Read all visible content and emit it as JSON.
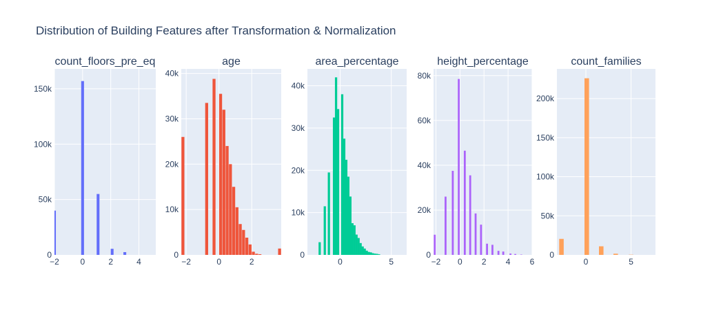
{
  "title": "Distribution of Building Features after Transformation & Normalization",
  "colors": {
    "plot_bg": "#e5ecf6",
    "grid": "#ffffff",
    "text": "#2a3f5f"
  },
  "chart_data": [
    {
      "type": "bar",
      "title": "count_floors_pre_eq",
      "color": "#636efa",
      "xlim": [
        -2,
        5.2
      ],
      "ylim": [
        0,
        168000
      ],
      "xticks": [
        -2,
        0,
        2,
        4
      ],
      "xtick_labels": [
        "−2",
        "0",
        "2",
        "4"
      ],
      "yticks": [
        0,
        50000,
        100000,
        150000
      ],
      "ytick_labels": [
        "0",
        "50k",
        "100k",
        "150k"
      ],
      "bin_width": 0.2,
      "bars": [
        {
          "x": -2,
          "y": 40000
        },
        {
          "x": 0,
          "y": 157000
        },
        {
          "x": 1.1,
          "y": 55000
        },
        {
          "x": 2.1,
          "y": 5500
        },
        {
          "x": 3.0,
          "y": 2500
        }
      ]
    },
    {
      "type": "bar",
      "title": "age",
      "color": "#ef553b",
      "xlim": [
        -2.3,
        3.8
      ],
      "ylim": [
        0,
        41000
      ],
      "xticks": [
        -2,
        0,
        2
      ],
      "xtick_labels": [
        "−2",
        "0",
        "2"
      ],
      "yticks": [
        0,
        10000,
        20000,
        30000,
        40000
      ],
      "ytick_labels": [
        "0",
        "10k",
        "20k",
        "30k",
        "40k"
      ],
      "bin_width": 0.18,
      "bars": [
        {
          "x": -2.2,
          "y": 26000
        },
        {
          "x": -0.75,
          "y": 33500
        },
        {
          "x": -0.3,
          "y": 38800
        },
        {
          "x": 0.1,
          "y": 35500
        },
        {
          "x": 0.3,
          "y": 32000
        },
        {
          "x": 0.5,
          "y": 24000
        },
        {
          "x": 0.7,
          "y": 20000
        },
        {
          "x": 0.9,
          "y": 15000
        },
        {
          "x": 1.1,
          "y": 10500
        },
        {
          "x": 1.3,
          "y": 6800
        },
        {
          "x": 1.5,
          "y": 5500
        },
        {
          "x": 1.7,
          "y": 3800
        },
        {
          "x": 1.9,
          "y": 2300
        },
        {
          "x": 2.1,
          "y": 700
        },
        {
          "x": 2.3,
          "y": 250
        },
        {
          "x": 2.5,
          "y": 150
        },
        {
          "x": 3.7,
          "y": 1400
        }
      ]
    },
    {
      "type": "bar",
      "title": "area_percentage",
      "color": "#00cc96",
      "xlim": [
        -3.2,
        6.5
      ],
      "ylim": [
        0,
        44000
      ],
      "xticks": [
        0,
        5
      ],
      "xtick_labels": [
        "0",
        "5"
      ],
      "yticks": [
        0,
        10000,
        20000,
        30000,
        40000
      ],
      "ytick_labels": [
        "0",
        "10k",
        "20k",
        "30k",
        "40k"
      ],
      "bin_width": 0.22,
      "bars": [
        {
          "x": -2.0,
          "y": 3000
        },
        {
          "x": -1.5,
          "y": 11500
        },
        {
          "x": -1.1,
          "y": 19500
        },
        {
          "x": -0.6,
          "y": 32500
        },
        {
          "x": -0.4,
          "y": 42000
        },
        {
          "x": -0.2,
          "y": 34500
        },
        {
          "x": 0.2,
          "y": 38000
        },
        {
          "x": 0.4,
          "y": 27500
        },
        {
          "x": 0.6,
          "y": 22500
        },
        {
          "x": 0.8,
          "y": 18500
        },
        {
          "x": 1.0,
          "y": 13800
        },
        {
          "x": 1.2,
          "y": 7500
        },
        {
          "x": 1.4,
          "y": 7000
        },
        {
          "x": 1.6,
          "y": 4800
        },
        {
          "x": 1.8,
          "y": 4000
        },
        {
          "x": 2.0,
          "y": 2800
        },
        {
          "x": 2.2,
          "y": 2000
        },
        {
          "x": 2.4,
          "y": 1500
        },
        {
          "x": 2.6,
          "y": 1000
        },
        {
          "x": 2.8,
          "y": 700
        },
        {
          "x": 3.0,
          "y": 600
        },
        {
          "x": 3.2,
          "y": 400
        },
        {
          "x": 3.4,
          "y": 300
        },
        {
          "x": 3.6,
          "y": 250
        },
        {
          "x": 3.8,
          "y": 150
        }
      ]
    },
    {
      "type": "bar",
      "title": "height_percentage",
      "color": "#ab63fa",
      "xlim": [
        -2.2,
        6
      ],
      "ylim": [
        0,
        83000
      ],
      "xticks": [
        -2,
        0,
        2,
        4,
        6
      ],
      "xtick_labels": [
        "−2",
        "0",
        "2",
        "4",
        "6"
      ],
      "yticks": [
        0,
        20000,
        40000,
        60000,
        80000
      ],
      "ytick_labels": [
        "0",
        "20k",
        "40k",
        "60k",
        "80k"
      ],
      "bin_width": 0.16,
      "bars": [
        {
          "x": -2.1,
          "y": 9000
        },
        {
          "x": -1.2,
          "y": 26000
        },
        {
          "x": -0.6,
          "y": 37500
        },
        {
          "x": -0.1,
          "y": 78500
        },
        {
          "x": 0.4,
          "y": 46500
        },
        {
          "x": 0.85,
          "y": 35500
        },
        {
          "x": 1.3,
          "y": 18500
        },
        {
          "x": 1.75,
          "y": 13500
        },
        {
          "x": 2.25,
          "y": 5000
        },
        {
          "x": 2.7,
          "y": 4500
        },
        {
          "x": 3.2,
          "y": 1800
        },
        {
          "x": 3.6,
          "y": 1500
        },
        {
          "x": 4.2,
          "y": 600
        },
        {
          "x": 4.6,
          "y": 400
        },
        {
          "x": 5.1,
          "y": 150
        }
      ]
    },
    {
      "type": "bar",
      "title": "count_families",
      "color": "#ffa15a",
      "xlim": [
        -3.2,
        7.7
      ],
      "ylim": [
        0,
        238000
      ],
      "xticks": [
        0,
        5
      ],
      "xtick_labels": [
        "0",
        "5"
      ],
      "yticks": [
        0,
        50000,
        100000,
        150000,
        200000
      ],
      "ytick_labels": [
        "0",
        "50k",
        "100k",
        "150k",
        "200k"
      ],
      "bin_width": 0.5,
      "bars": [
        {
          "x": -2.7,
          "y": 20500
        },
        {
          "x": 0.1,
          "y": 226000
        },
        {
          "x": 1.7,
          "y": 11000
        },
        {
          "x": 3.3,
          "y": 1500
        },
        {
          "x": 5.0,
          "y": 300
        }
      ]
    }
  ]
}
